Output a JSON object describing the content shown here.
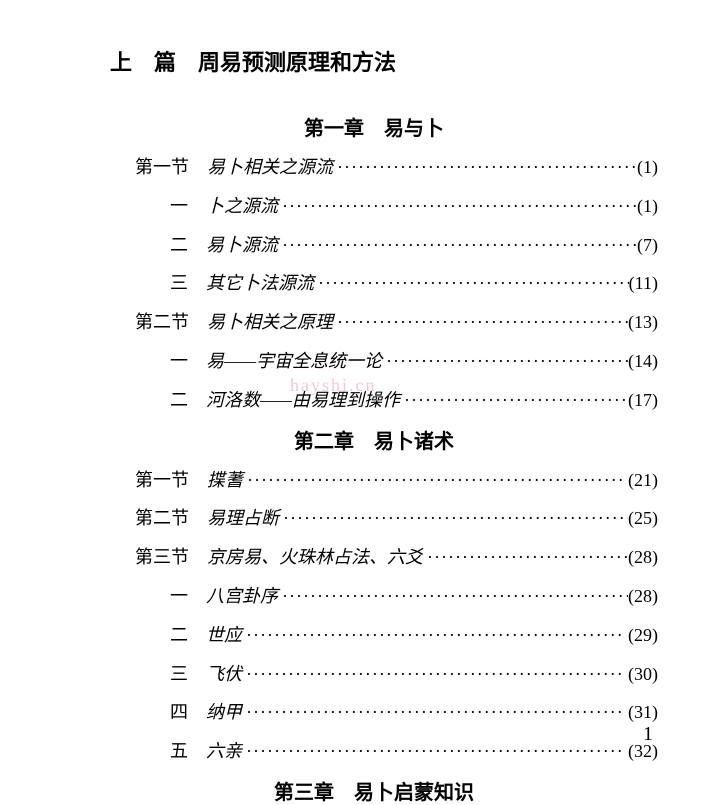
{
  "part": {
    "label": "上　篇　周易预测原理和方法"
  },
  "chapters": [
    {
      "heading": "第一章　易与卜",
      "entries": [
        {
          "prefix": "第一节　",
          "title": "易卜相关之源流",
          "page": "(1)",
          "italic": true,
          "indent": 45
        },
        {
          "prefix": "一　",
          "title": "卜之源流",
          "page": "(1)",
          "italic": true,
          "indent": 80
        },
        {
          "prefix": "二　",
          "title": "易卜源流",
          "page": "(7)",
          "italic": true,
          "indent": 80
        },
        {
          "prefix": "三　",
          "title": "其它卜法源流",
          "page": "(11)",
          "italic": true,
          "indent": 80
        },
        {
          "prefix": "第二节　",
          "title": "易卜相关之原理",
          "page": "(13)",
          "italic": true,
          "indent": 45
        },
        {
          "prefix": "一　",
          "title": "易——宇宙全息统一论",
          "page": "(14)",
          "italic": true,
          "indent": 80
        },
        {
          "prefix": "二　",
          "title": "河洛数——由易理到操作",
          "page": "(17)",
          "italic": true,
          "indent": 80
        }
      ]
    },
    {
      "heading": "第二章　易卜诸术",
      "entries": [
        {
          "prefix": "第一节　",
          "title": "揲蓍",
          "page": "(21)",
          "italic": true,
          "indent": 45
        },
        {
          "prefix": "第二节　",
          "title": "易理占断",
          "page": "(25)",
          "italic": true,
          "indent": 45
        },
        {
          "prefix": "第三节　",
          "title": "京房易、火珠林占法、六爻",
          "page": "(28)",
          "italic": true,
          "indent": 45
        },
        {
          "prefix": "一　",
          "title": "八宫卦序",
          "page": "(28)",
          "italic": true,
          "indent": 80
        },
        {
          "prefix": "二　",
          "title": "世应",
          "page": "(29)",
          "italic": true,
          "indent": 80
        },
        {
          "prefix": "三　",
          "title": "飞伏",
          "page": "(30)",
          "italic": true,
          "indent": 80
        },
        {
          "prefix": "四　",
          "title": "纳甲",
          "page": "(31)",
          "italic": true,
          "indent": 80
        },
        {
          "prefix": "五　",
          "title": "六亲",
          "page": "(32)",
          "italic": true,
          "indent": 80
        }
      ]
    },
    {
      "heading": "第三章　易卜启蒙知识",
      "entries": []
    }
  ],
  "page_number": "1",
  "watermark": "hayshi.cn",
  "colors": {
    "text": "#000000",
    "background": "#ffffff",
    "watermark": "#f3c9d3"
  },
  "dots": "······················································"
}
